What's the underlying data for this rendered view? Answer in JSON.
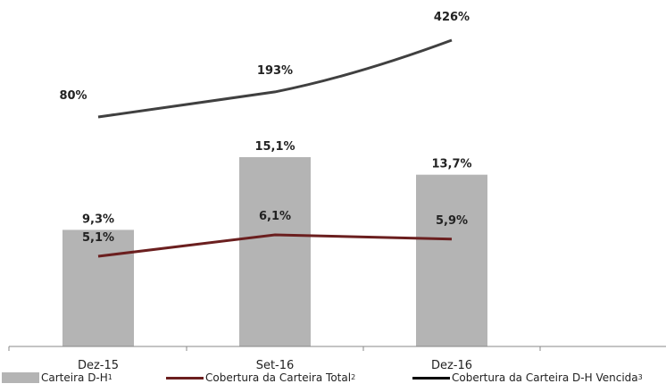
{
  "chart_data": {
    "type": "bar",
    "categories": [
      "Dez-15",
      "Set-16",
      "Dez-16"
    ],
    "series": [
      {
        "name": "Carteira D-H",
        "sup": "1",
        "kind": "bar",
        "color": "#b4b4b4",
        "values": [
          9.3,
          15.1,
          13.7
        ],
        "labels": [
          "9,3%",
          "15,1%",
          "13,7%"
        ]
      },
      {
        "name": "Cobertura da Carteira Total",
        "sup": "2",
        "kind": "line",
        "color": "#6b1f1f",
        "values": [
          5.1,
          6.1,
          5.9
        ],
        "labels": [
          "5,1%",
          "6,1%",
          "5,9%"
        ]
      },
      {
        "name": "Cobertura da Carteira D-H Vencida",
        "sup": "3",
        "kind": "line",
        "color": "#404040",
        "values": [
          80,
          193,
          426
        ],
        "labels": [
          "80%",
          "193%",
          "426%"
        ]
      }
    ],
    "legend_position": "bottom",
    "grid": false
  }
}
